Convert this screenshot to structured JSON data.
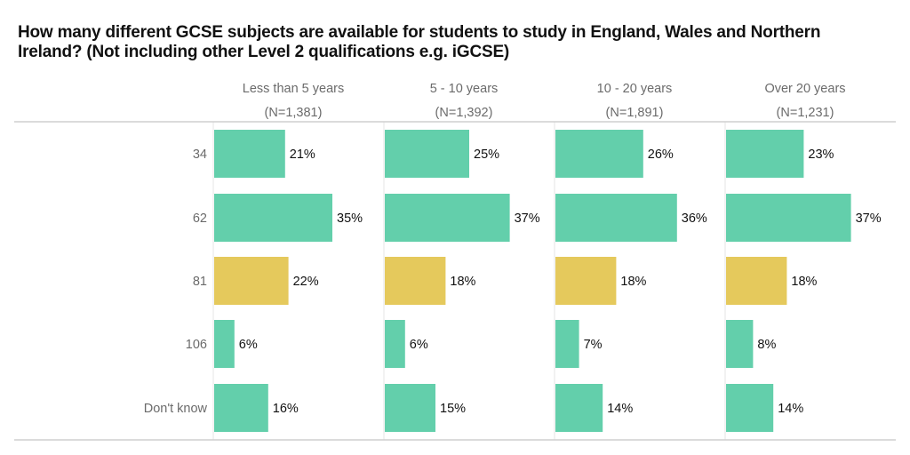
{
  "chart_data": {
    "type": "bar",
    "orientation": "horizontal",
    "title": "How many different GCSE subjects are available for students to study in England, Wales and Northern Ireland? (Not including other Level 2 qualifications e.g. iGCSE)",
    "categories": [
      "34",
      "62",
      "81",
      "106",
      "Don't know"
    ],
    "highlight_category": "81",
    "panels": [
      {
        "name": "Less than 5 years",
        "n_label": "(N=1,381)",
        "values": [
          21,
          35,
          22,
          6,
          16
        ]
      },
      {
        "name": "5 - 10 years",
        "n_label": "(N=1,392)",
        "values": [
          25,
          37,
          18,
          6,
          15
        ]
      },
      {
        "name": "10 - 20 years",
        "n_label": "(N=1,891)",
        "values": [
          26,
          36,
          18,
          7,
          14
        ]
      },
      {
        "name": "Over 20 years",
        "n_label": "(N=1,231)",
        "values": [
          23,
          37,
          18,
          8,
          14
        ]
      }
    ],
    "value_suffix": "%",
    "xlim": [
      0,
      50
    ],
    "colors": {
      "default": "#63cfab",
      "highlight": "#e5c95c",
      "grid": "#e4e4e4",
      "rule": "#cfcfcf"
    }
  }
}
